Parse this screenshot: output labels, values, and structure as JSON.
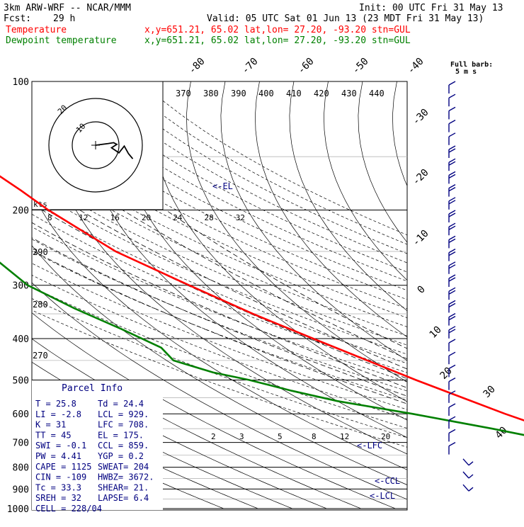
{
  "header": {
    "model": "3km ARW-WRF -- NCAR/MMM",
    "init": "Init: 00 UTC Fri 31 May 13",
    "fcst_label": "Fcst:",
    "fcst_value": "29 h",
    "valid": "Valid: 05 UTC Sat 01 Jun 13 (23 MDT Fri 31 May 13)",
    "temp_label": "Temperature",
    "dew_label": "Dewpoint temperature",
    "loc_line": "x,y=651.21, 65.02   lat,lon= 27.20, -93.20  stn=GUL"
  },
  "colors": {
    "temperature": "#ff0000",
    "dewpoint": "#008000",
    "annotation": "#000080",
    "background": "#ffffff"
  },
  "chart_data": {
    "type": "line",
    "title": "",
    "y_axis": "pressure (hPa, log scale)",
    "x_axis": "temperature (C, skewed)",
    "pressure_labels": [
      100,
      200,
      300,
      400,
      500,
      600,
      700,
      800,
      900,
      1000
    ],
    "pressure_range": [
      1000,
      100
    ],
    "temperature_isotherm_labels": [
      -80,
      -70,
      -60,
      -50,
      -40,
      -30,
      -20,
      -10,
      0,
      10,
      20,
      30,
      40
    ],
    "theta_labels_top": [
      370,
      380,
      390,
      400,
      410,
      420,
      430,
      440
    ],
    "theta_labels_left": [
      290,
      280,
      270
    ],
    "mixing_ratio_labels": [
      2,
      3,
      5,
      8,
      12,
      20
    ],
    "series": [
      {
        "name": "Temperature",
        "color": "#ff0000",
        "points": [
          [
            1000,
            25.8
          ],
          [
            950,
            24.0
          ],
          [
            900,
            21.5
          ],
          [
            850,
            18.5
          ],
          [
            800,
            16.0
          ],
          [
            700,
            9.5
          ],
          [
            600,
            2.0
          ],
          [
            500,
            -6.5
          ],
          [
            400,
            -18.0
          ],
          [
            350,
            -26.0
          ],
          [
            300,
            -35.0
          ],
          [
            250,
            -47.0
          ],
          [
            200,
            -58.0
          ],
          [
            180,
            -63.0
          ],
          [
            160,
            -70.0
          ],
          [
            140,
            -75.0
          ],
          [
            120,
            -78.0
          ],
          [
            110,
            -78.0
          ],
          [
            100,
            -77.0
          ]
        ]
      },
      {
        "name": "Dewpoint temperature",
        "color": "#008000",
        "points": [
          [
            1000,
            24.4
          ],
          [
            975,
            22.5
          ],
          [
            950,
            20.0
          ],
          [
            925,
            17.5
          ],
          [
            900,
            16.5
          ],
          [
            850,
            15.5
          ],
          [
            800,
            13.5
          ],
          [
            750,
            8.0
          ],
          [
            700,
            2.0
          ],
          [
            650,
            -10.0
          ],
          [
            600,
            -25.0
          ],
          [
            560,
            -40.0
          ],
          [
            530,
            -48.0
          ],
          [
            500,
            -55.0
          ],
          [
            480,
            -62.0
          ],
          [
            450,
            -68.0
          ],
          [
            420,
            -66.0
          ],
          [
            380,
            -70.0
          ],
          [
            340,
            -76.0
          ],
          [
            300,
            -82.0
          ],
          [
            260,
            -84.0
          ],
          [
            230,
            -85.0
          ],
          [
            200,
            -87.0
          ],
          [
            180,
            -88.0
          ],
          [
            160,
            -88.0
          ],
          [
            140,
            -86.0
          ],
          [
            120,
            -84.0
          ],
          [
            100,
            -84.0
          ]
        ]
      }
    ],
    "hodograph_ring_labels": [
      "20",
      "10"
    ],
    "hodograph_points": [
      [
        0,
        0
      ],
      [
        1.2,
        -0.2
      ],
      [
        1.7,
        -0.3
      ],
      [
        2.0,
        -0.1
      ],
      [
        1.5,
        0.3
      ],
      [
        2.2,
        0.9
      ],
      [
        2.7,
        0.1
      ],
      [
        3.1,
        1.0
      ],
      [
        3.5,
        1.6
      ]
    ],
    "level_markers": {
      "EL": "<-EL",
      "LFC": "<-LFC",
      "CCL": "<-CCL",
      "LCL": "<-LCL"
    },
    "hodo_unit": "kts",
    "wind_scale_labels": [
      "8",
      "12",
      "16",
      "20",
      "24",
      "28",
      "32"
    ],
    "barb_legend": {
      "line1": "Full barb:",
      "line2": "5 m s"
    }
  },
  "parcel_info": {
    "title": "Parcel Info",
    "rows": [
      [
        "T  =    25.8",
        "Td  =  24.4"
      ],
      [
        "LI =    -2.8",
        "LCL =  929."
      ],
      [
        "K  =      31",
        "LFC =  708."
      ],
      [
        "TT =      45",
        "EL  =  175."
      ],
      [
        "SWI =   -0.1",
        "CCL =  859."
      ],
      [
        "PW =    4.41",
        "YGP =   0.2"
      ],
      [
        "CAPE =  1125",
        "SWEAT=  204"
      ],
      [
        "CIN =   -109",
        "HWBZ= 3672."
      ],
      [
        "Tc =    33.3",
        "SHEAR=  21."
      ],
      [
        "SREH =    32",
        "LAPSE=  6.4"
      ],
      [
        "CELL = 228/04",
        ""
      ]
    ]
  }
}
